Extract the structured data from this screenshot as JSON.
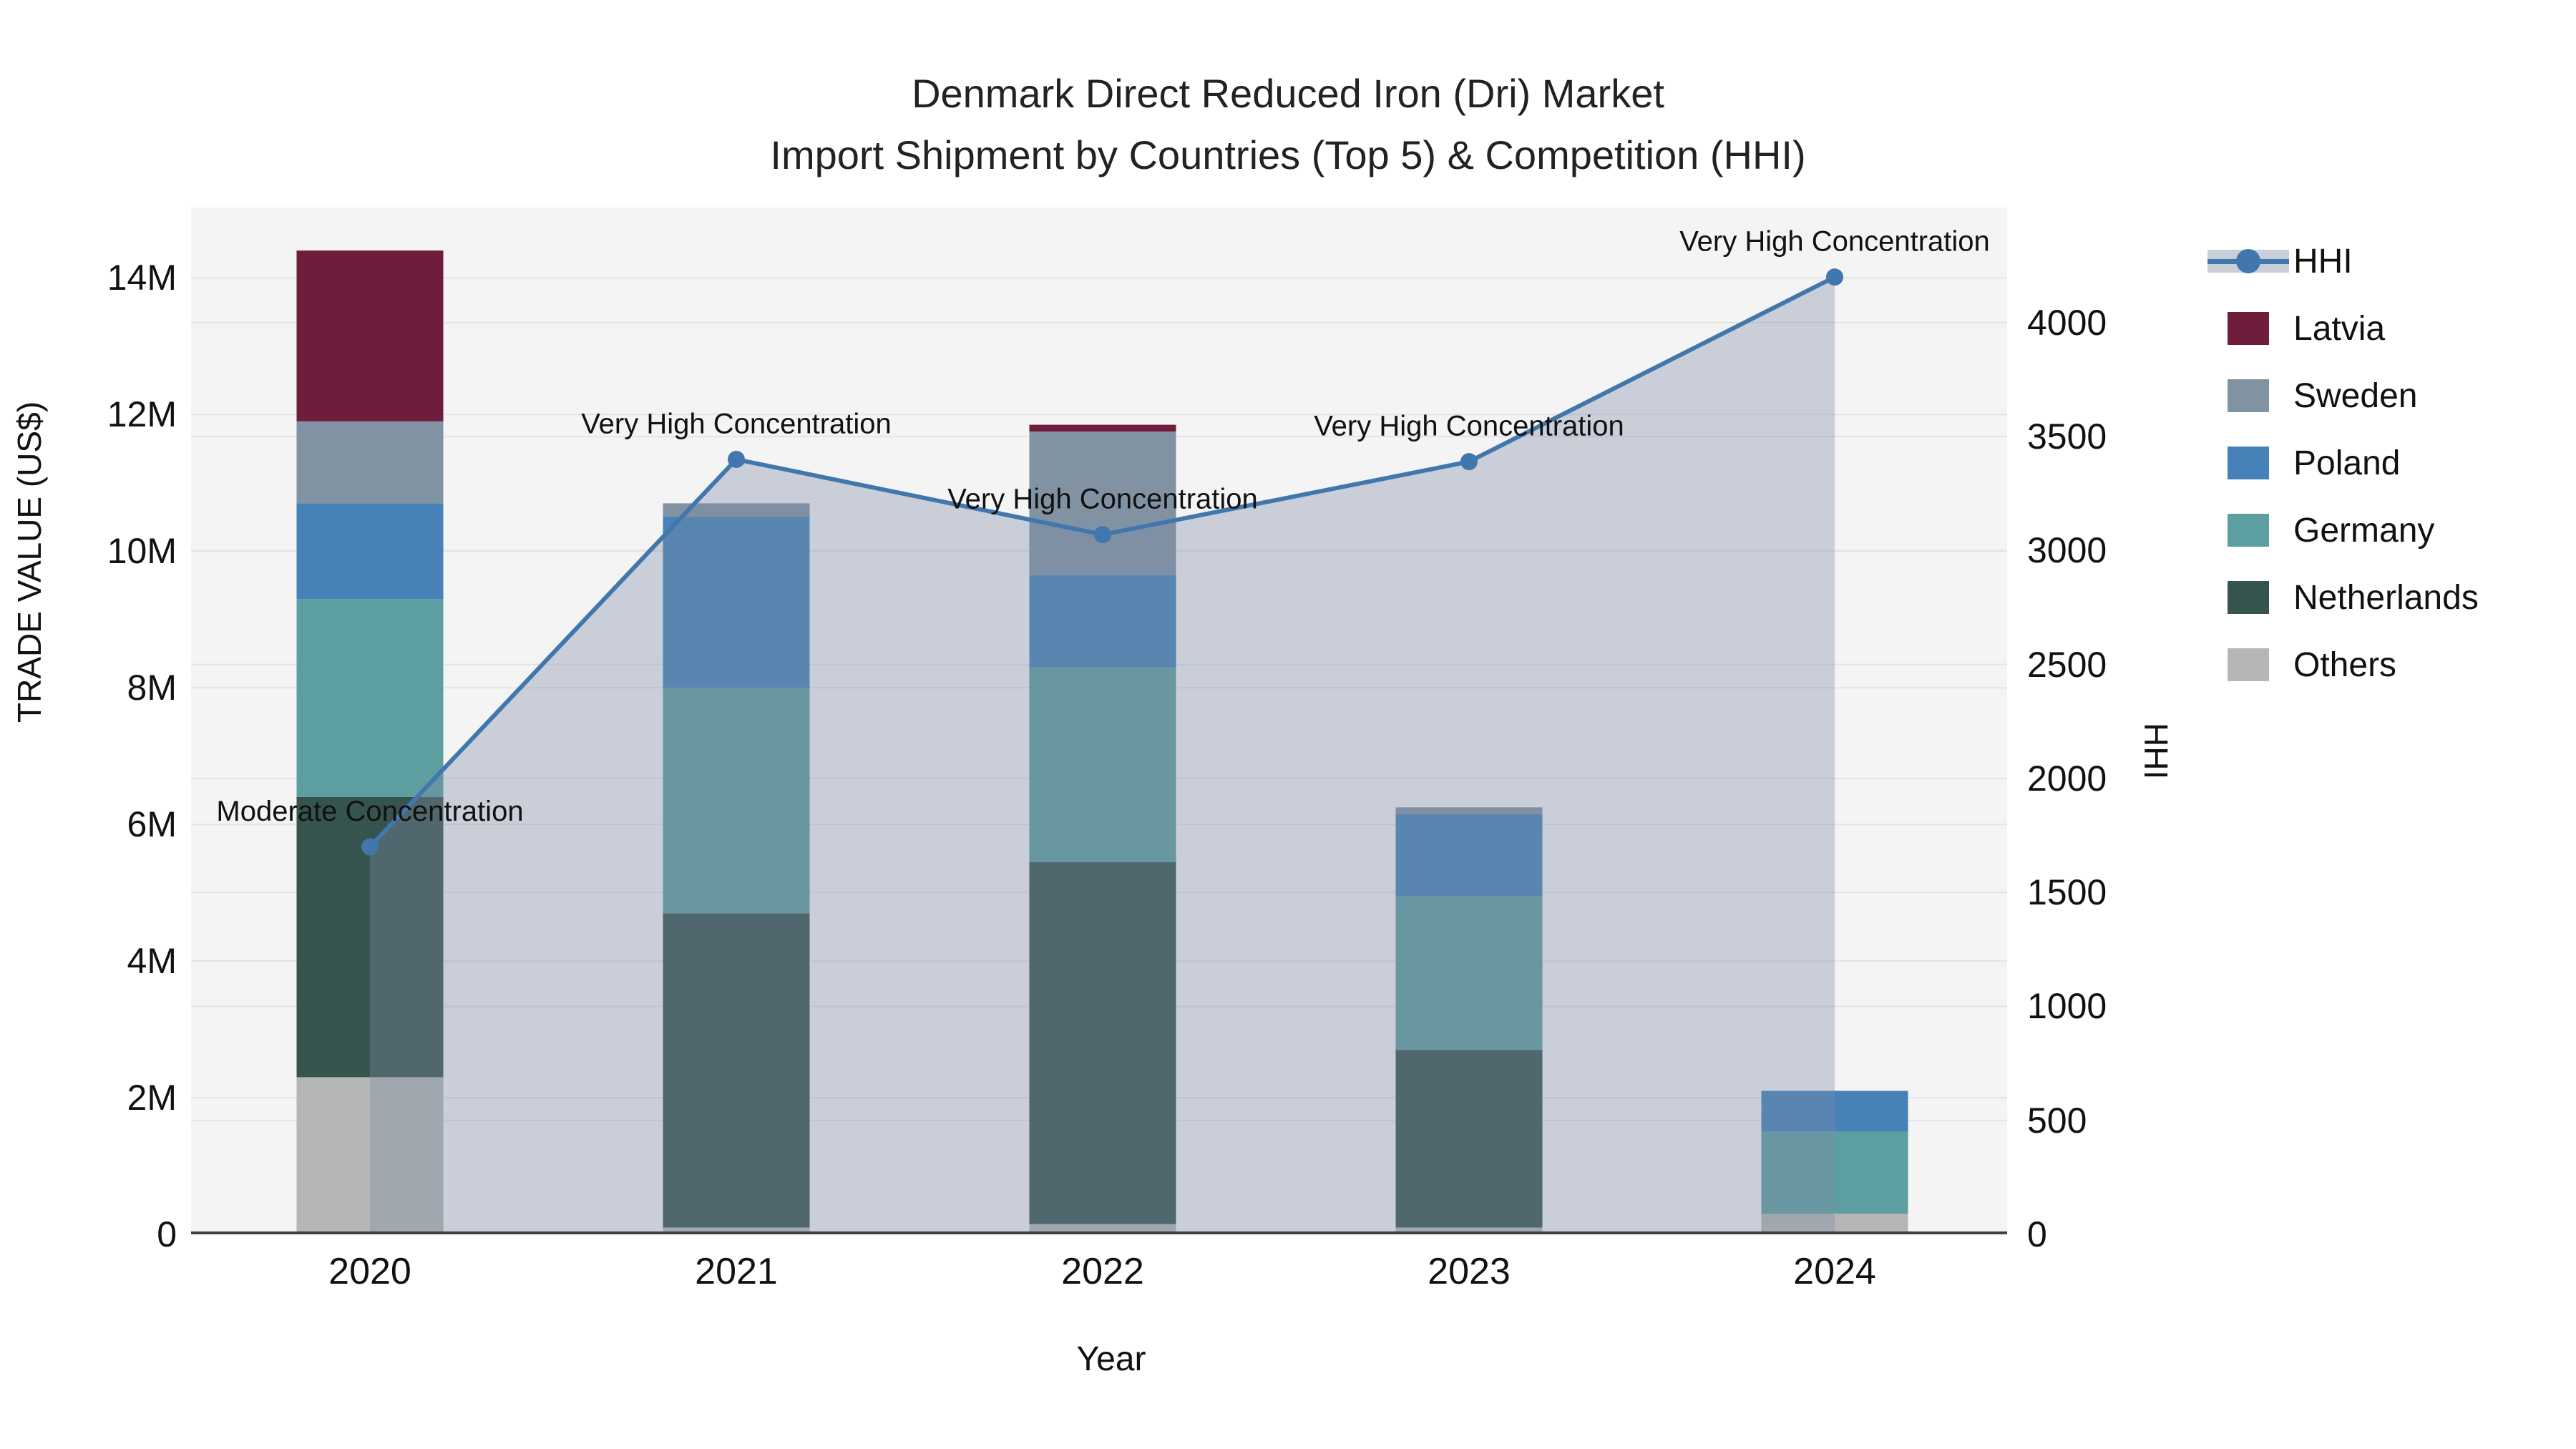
{
  "title": {
    "line1": "Denmark Direct Reduced Iron (Dri) Market",
    "line2": "Import Shipment by Countries (Top 5) & Competition (HHI)"
  },
  "axes": {
    "x_label": "Year",
    "y_left_label": "TRADE VALUE (US$)",
    "y_right_label": "HHI",
    "y_left_ticks": [
      {
        "value": 0,
        "label": "0"
      },
      {
        "value": 2,
        "label": "2M"
      },
      {
        "value": 4,
        "label": "4M"
      },
      {
        "value": 6,
        "label": "6M"
      },
      {
        "value": 8,
        "label": "8M"
      },
      {
        "value": 10,
        "label": "10M"
      },
      {
        "value": 12,
        "label": "12M"
      },
      {
        "value": 14,
        "label": "14M"
      }
    ],
    "y_right_ticks": [
      {
        "value": 0,
        "label": "0"
      },
      {
        "value": 500,
        "label": "500"
      },
      {
        "value": 1000,
        "label": "1000"
      },
      {
        "value": 1500,
        "label": "1500"
      },
      {
        "value": 2000,
        "label": "2000"
      },
      {
        "value": 2500,
        "label": "2500"
      },
      {
        "value": 3000,
        "label": "3000"
      },
      {
        "value": 3500,
        "label": "3500"
      },
      {
        "value": 4000,
        "label": "4000"
      }
    ]
  },
  "legend": {
    "items": [
      {
        "name": "HHI",
        "type": "line"
      },
      {
        "name": "Latvia",
        "type": "swatch"
      },
      {
        "name": "Sweden",
        "type": "swatch"
      },
      {
        "name": "Poland",
        "type": "swatch"
      },
      {
        "name": "Germany",
        "type": "swatch"
      },
      {
        "name": "Netherlands",
        "type": "swatch"
      },
      {
        "name": "Others",
        "type": "swatch"
      }
    ]
  },
  "colors": {
    "Latvia": "#6e1d3d",
    "Sweden": "#8193a3",
    "Poland": "#4682b8",
    "Germany": "#5d9fa0",
    "Netherlands": "#36544e",
    "Others": "#b4b7b5",
    "HHI": "#4177ad",
    "hhi_fill": "rgba(124,138,166,0.36)",
    "hhi_fill_solid": "#c9ced8",
    "plot_bg": "#f4f4f4",
    "grid": "#e3e3e3",
    "axis_line": "#3f3f3f",
    "annotation_text": "#111111"
  },
  "chart_data": {
    "type": "bar+line",
    "title": "Denmark Direct Reduced Iron (Dri) Market Import Shipment by Countries (Top 5) & Competition (HHI)",
    "categories": [
      "2020",
      "2021",
      "2022",
      "2023",
      "2024"
    ],
    "bar_unit": "million US$",
    "stack_order_bottom_to_top": [
      "Others",
      "Netherlands",
      "Germany",
      "Poland",
      "Sweden",
      "Latvia"
    ],
    "series": [
      {
        "name": "Others",
        "values": [
          2.3,
          0.1,
          0.15,
          0.1,
          0.3
        ]
      },
      {
        "name": "Netherlands",
        "values": [
          4.1,
          4.6,
          5.3,
          2.6,
          0
        ]
      },
      {
        "name": "Germany",
        "values": [
          2.9,
          3.3,
          2.85,
          2.25,
          1.2
        ]
      },
      {
        "name": "Poland",
        "values": [
          1.4,
          2.5,
          1.35,
          1.2,
          0.6
        ]
      },
      {
        "name": "Sweden",
        "values": [
          1.2,
          0.2,
          2.1,
          0.1,
          0
        ]
      },
      {
        "name": "Latvia",
        "values": [
          2.5,
          0,
          0.1,
          0,
          0
        ]
      }
    ],
    "bar_totals": [
      14.4,
      10.7,
      11.85,
      6.25,
      2.1
    ],
    "line_series": {
      "name": "HHI",
      "values": [
        1700,
        3400,
        3070,
        3390,
        4200
      ],
      "fill_to_zero": true
    },
    "point_annotations": [
      "Moderate Concentration",
      "Very High Concentration",
      "Very High Concentration",
      "Very High Concentration",
      "Very High Concentration"
    ],
    "xlabel": "Year",
    "ylabel_left": "TRADE VALUE (US$)",
    "ylabel_right": "HHI",
    "ylim_left": [
      0,
      15.03
    ],
    "ylim_right": [
      0,
      4505
    ],
    "grid": true,
    "legend_position": "right"
  }
}
